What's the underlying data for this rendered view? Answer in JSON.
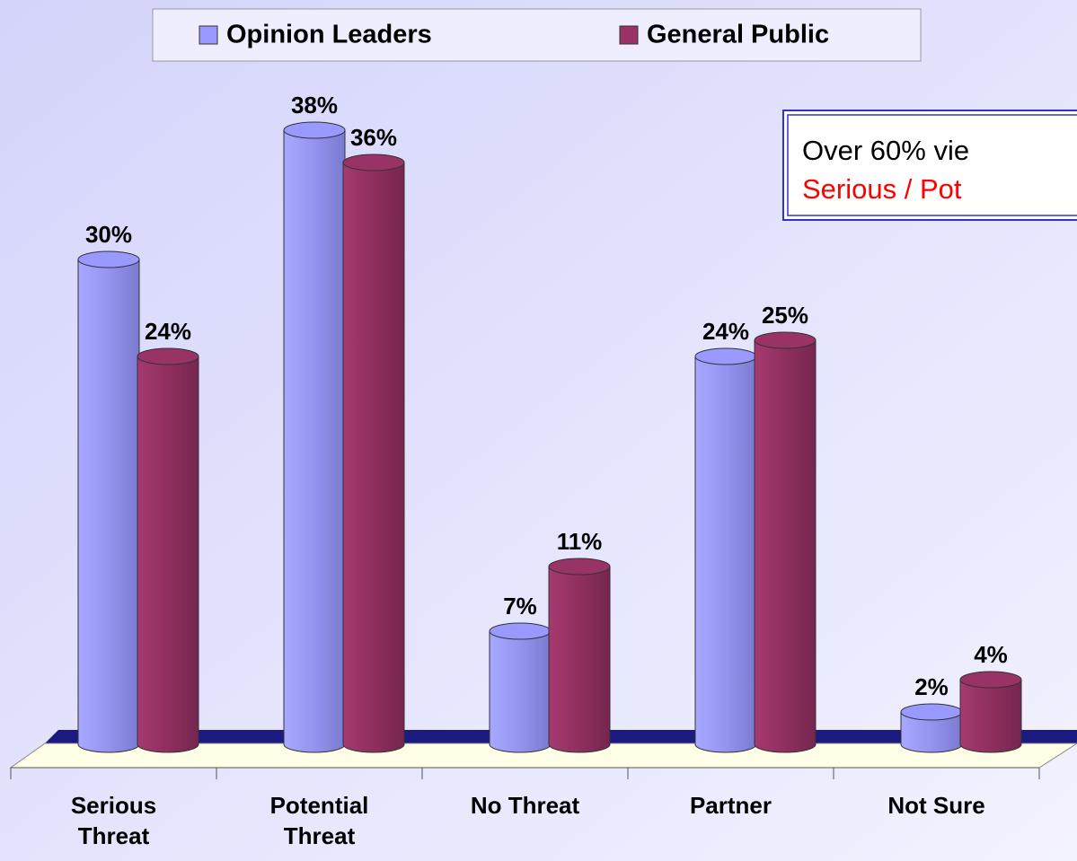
{
  "chart_data": {
    "type": "bar",
    "categories": [
      "Serious Threat",
      "Potential Threat",
      "No Threat",
      "Partner",
      "Not Sure"
    ],
    "series": [
      {
        "name": "Opinion Leaders",
        "color": "#9999ff",
        "values": [
          30,
          38,
          7,
          24,
          2
        ],
        "value_labels": [
          "30%",
          "38%",
          "7%",
          "24%",
          "2%"
        ]
      },
      {
        "name": "General Public",
        "color": "#993366",
        "values": [
          24,
          36,
          11,
          25,
          4
        ],
        "value_labels": [
          "24%",
          "36%",
          "11%",
          "25%",
          "4%"
        ]
      }
    ],
    "legend": "top",
    "annotations": [
      "Over 60% vie",
      "Serious / Pot"
    ]
  }
}
